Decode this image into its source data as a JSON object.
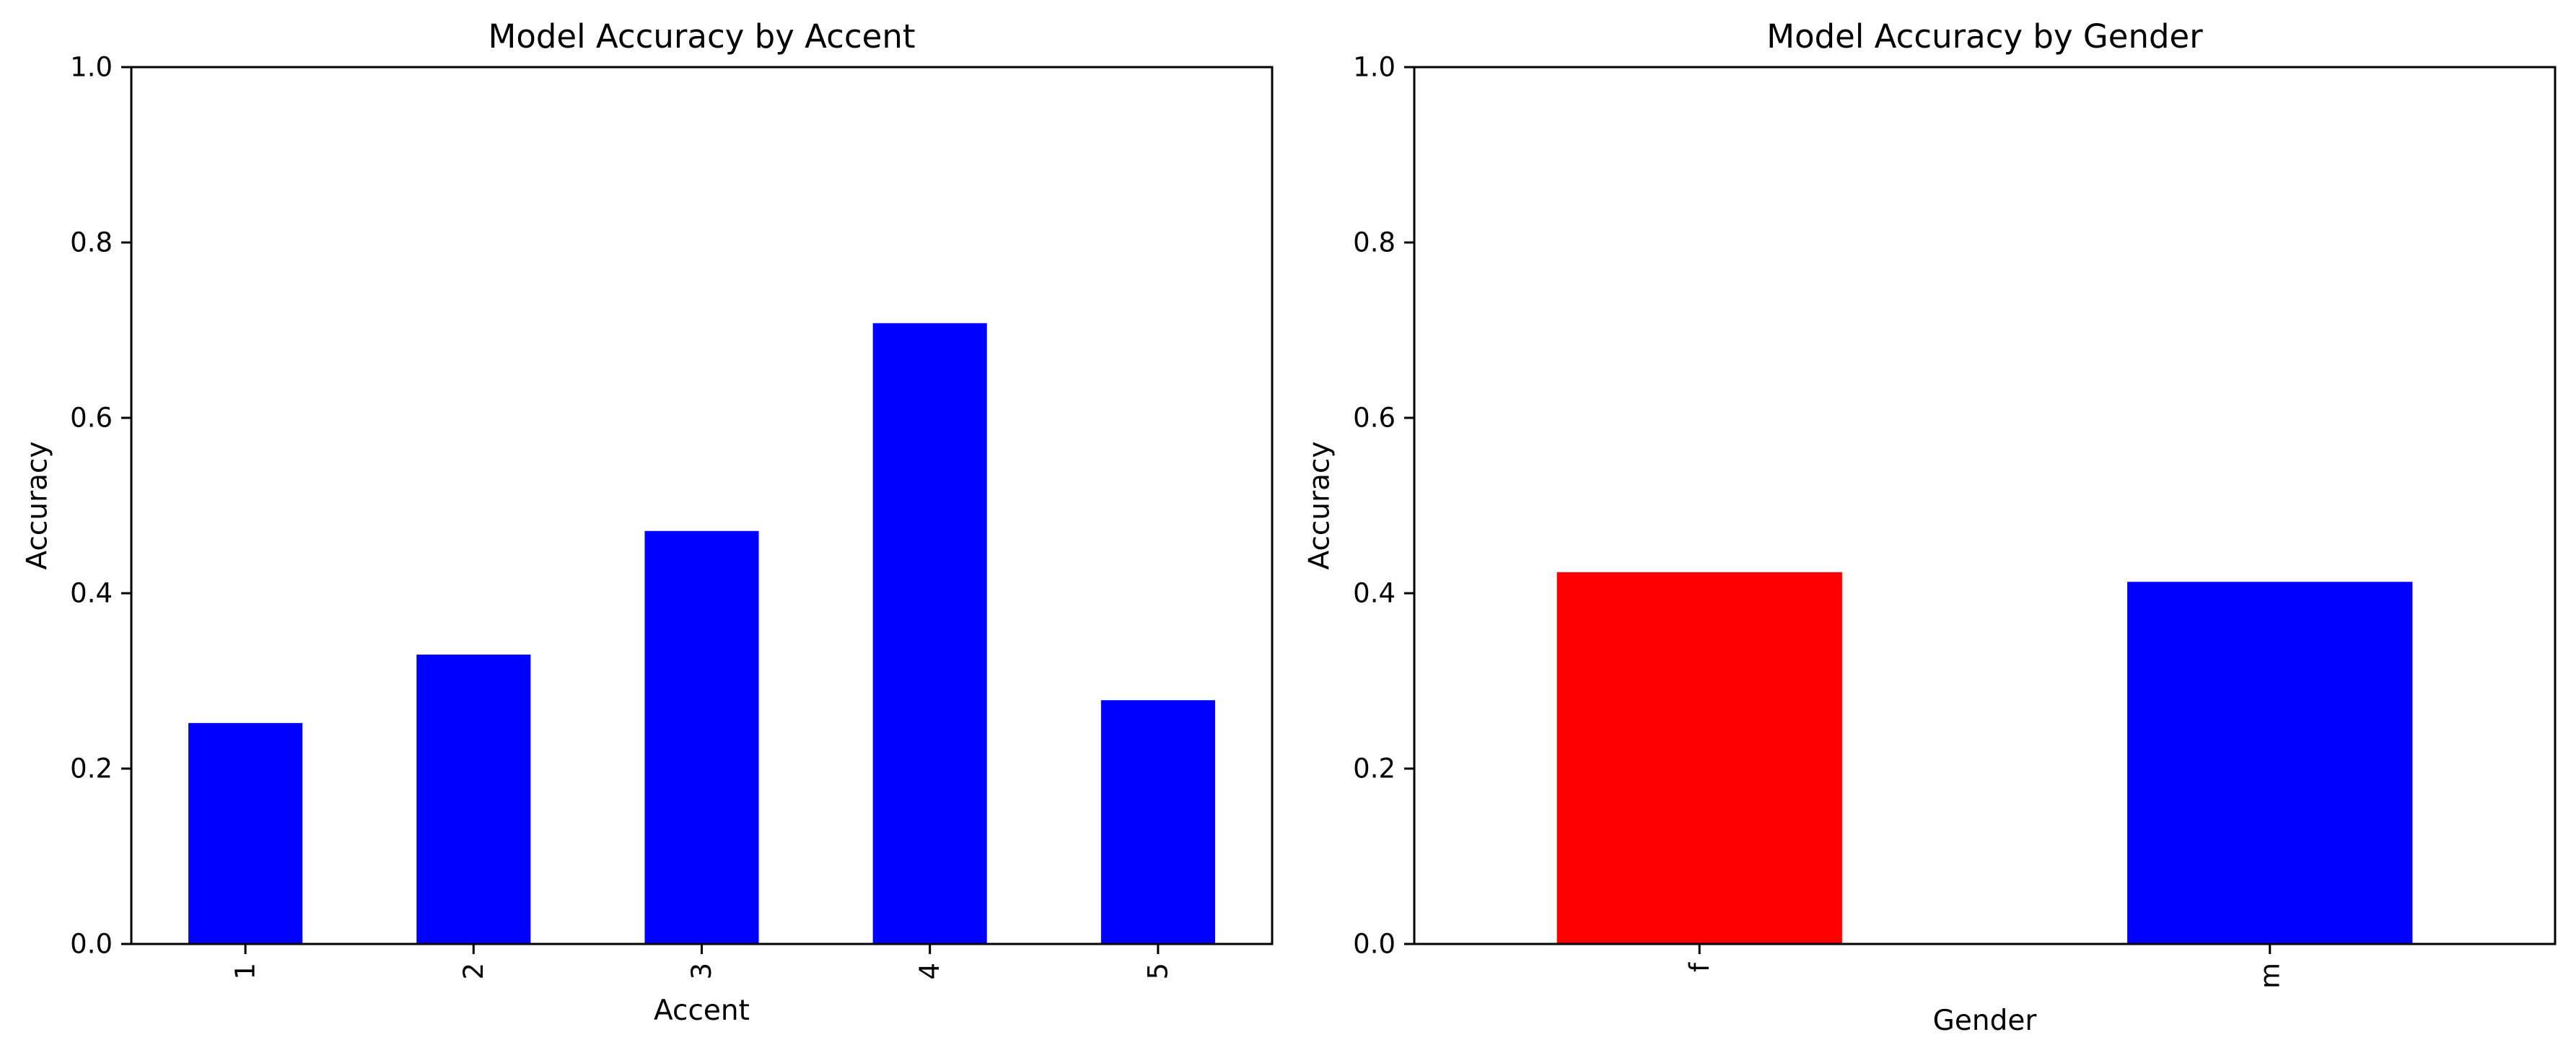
{
  "chart_data": [
    {
      "type": "bar",
      "title": "Model Accuracy by Accent",
      "xlabel": "Accent",
      "ylabel": "Accuracy",
      "categories": [
        "1",
        "2",
        "3",
        "4",
        "5"
      ],
      "values": [
        0.252,
        0.33,
        0.471,
        0.708,
        0.278
      ],
      "colors": [
        "#0000ff",
        "#0000ff",
        "#0000ff",
        "#0000ff",
        "#0000ff"
      ],
      "ylim": [
        0,
        1.0
      ],
      "yticks": [
        "0.0",
        "0.2",
        "0.4",
        "0.6",
        "0.8",
        "1.0"
      ],
      "xtick_rotation": "vertical",
      "grid": false,
      "legend": "none"
    },
    {
      "type": "bar",
      "title": "Model Accuracy by Gender",
      "xlabel": "Gender",
      "ylabel": "Accuracy",
      "categories": [
        "f",
        "m"
      ],
      "values": [
        0.424,
        0.413
      ],
      "colors": [
        "#ff0000",
        "#0000ff"
      ],
      "ylim": [
        0,
        1.0
      ],
      "yticks": [
        "0.0",
        "0.2",
        "0.4",
        "0.6",
        "0.8",
        "1.0"
      ],
      "xtick_rotation": "vertical",
      "grid": false,
      "legend": "none"
    }
  ]
}
